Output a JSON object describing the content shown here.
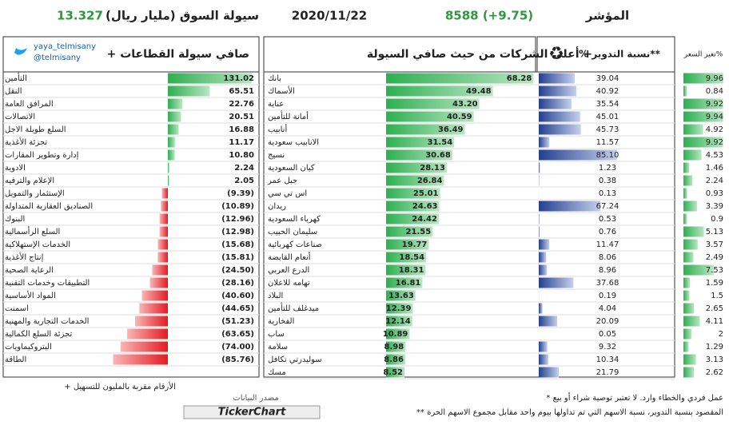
{
  "header": {
    "index_label": "المؤشر",
    "index_value": "8588 (+9.75)",
    "date": "2020/11/22",
    "liquidity_label": "سيولة السوق (مليار ريال)",
    "liquidity_value": "13.327"
  },
  "sectors": {
    "title": "صافي سيولة القطاعات +",
    "handle": "yaya_telmisany",
    "handle2": "@telmisany",
    "names": [
      "التأمين",
      "النقل",
      "المرافق العامة",
      "الاتصالات",
      "السلع طويلة الاجل",
      "تجزئة الأغذية",
      "إدارة وتطوير المقارات",
      "الادوية",
      "الإعلام والترفيه",
      "الإستثمار والتمويل",
      "الصناديق العقارية المتداولة",
      "البنوك",
      "السلع الرأسمالية",
      "الخدمات الإستهلاكية",
      "إنتاج الأغذية",
      "الرعاية الصحية",
      "التطبيقات وخدمات التقنية",
      "المواد الأساسية",
      "اسمنت",
      "الخدمات التجارية والمهنية",
      "تجزئة السلع الكمالية",
      "البتروكيماويات",
      "الطاقة"
    ],
    "values": [
      131.02,
      65.51,
      22.76,
      20.51,
      16.88,
      11.17,
      10.8,
      2.24,
      2.05,
      -9.39,
      -10.89,
      -12.96,
      -12.98,
      -15.68,
      -15.81,
      -24.5,
      -28.16,
      -40.6,
      -44.65,
      -51.23,
      -63.65,
      -74.0,
      -85.76
    ],
    "value_labels": [
      "131.02",
      "65.51",
      "22.76",
      "20.51",
      "16.88",
      "11.17",
      "10.80",
      "2.24",
      "2.05",
      "(9.39)",
      "(10.89)",
      "(12.96)",
      "(12.98)",
      "(15.68)",
      "(15.81)",
      "(24.50)",
      "(28.16)",
      "(40.60)",
      "(44.65)",
      "(51.23)",
      "(63.65)",
      "(74.00)",
      "(85.76)"
    ],
    "note": "+ الأرقام مقربة بالمليون للتسهيل"
  },
  "companies": {
    "title": "أعلى الشركات من حيث صافي السيولة +",
    "names": [
      "بانك",
      "الأسماك",
      "عناية",
      "أمانة للتأمين",
      "أنابيب",
      "الانابيب سعودية",
      "نسيج",
      "كيان السعودية",
      "جبل عمر",
      "اس تي سي",
      "ريدان",
      "كهرباء السعودية",
      "سليمان الحبيب",
      "صناعات كهربائية",
      "أنعام القابضة",
      "الدرع العربي",
      "تهامه للاعلان",
      "البلاد",
      "ميدغلف للتأمين",
      "الفخارية",
      "ساب",
      "سلامة",
      "سوليدرتي تكافل",
      "مسك"
    ],
    "values": [
      68.28,
      49.48,
      43.2,
      40.59,
      36.49,
      31.54,
      30.68,
      28.13,
      26.84,
      25.01,
      24.63,
      24.42,
      21.55,
      19.77,
      18.54,
      18.31,
      16.81,
      13.63,
      12.39,
      12.14,
      10.89,
      8.98,
      8.86,
      8.52
    ],
    "value_labels": [
      "68.28",
      "49.48",
      "43.20",
      "40.59",
      "36.49",
      "31.54",
      "30.68",
      "28.13",
      "26.84",
      "25.01",
      "24.63",
      "24.42",
      "21.55",
      "19.77",
      "18.54",
      "18.31",
      "16.81",
      "13.63",
      "12.39",
      "12.14",
      "10.89",
      "8.98",
      "8.86",
      "8.52"
    ]
  },
  "turnover": {
    "title": "% نسبة التدوير**",
    "values": [
      39.04,
      40.92,
      35.54,
      45.01,
      45.73,
      11.57,
      85.1,
      1.23,
      0.38,
      0.13,
      67.24,
      0.53,
      0.76,
      11.47,
      8.06,
      8.96,
      37.68,
      0.19,
      4.04,
      20.09,
      0.05,
      9.32,
      10.34,
      21.79
    ],
    "value_labels": [
      "39.04",
      "40.92",
      "35.54",
      "45.01",
      "45.73",
      "11.57",
      "85.10",
      "1.23",
      "0.38",
      "0.13",
      "67.24",
      "0.53",
      "0.76",
      "11.47",
      "8.06",
      "8.96",
      "37.68",
      "0.19",
      "4.04",
      "20.09",
      "0.05",
      "9.32",
      "10.34",
      "21.79"
    ]
  },
  "price_change": {
    "title": "تغير السعر%",
    "values": [
      9.96,
      0.84,
      9.92,
      9.94,
      4.92,
      9.92,
      4.53,
      1.46,
      2.24,
      0.93,
      3.39,
      0.9,
      5.13,
      3.57,
      2.49,
      7.53,
      1.59,
      1.5,
      2.65,
      4.11,
      2,
      1.29,
      3.13,
      2.62
    ],
    "value_labels": [
      "9.96",
      "0.84",
      "9.92",
      "9.94",
      "4.92",
      "9.92",
      "4.53",
      "1.46",
      "2.24",
      "0.93",
      "3.39",
      "0.9",
      "5.13",
      "3.57",
      "2.49",
      "7.53",
      "1.59",
      "1.5",
      "2.65",
      "4.11",
      "2",
      "1.29",
      "3.13",
      "2.62"
    ]
  },
  "footer": {
    "source": "مصدر البيانات",
    "brand": "TickerChart",
    "note1": "* عمل فردي والخطاء وارد. لا تعتبر توصية شراء أو بيع",
    "note2": "** المقصود بنسبة التدوير، نسبة الاسهم التي تم تداولها بيوم واحد مقابل مجموع الاسهم الحرة"
  }
}
